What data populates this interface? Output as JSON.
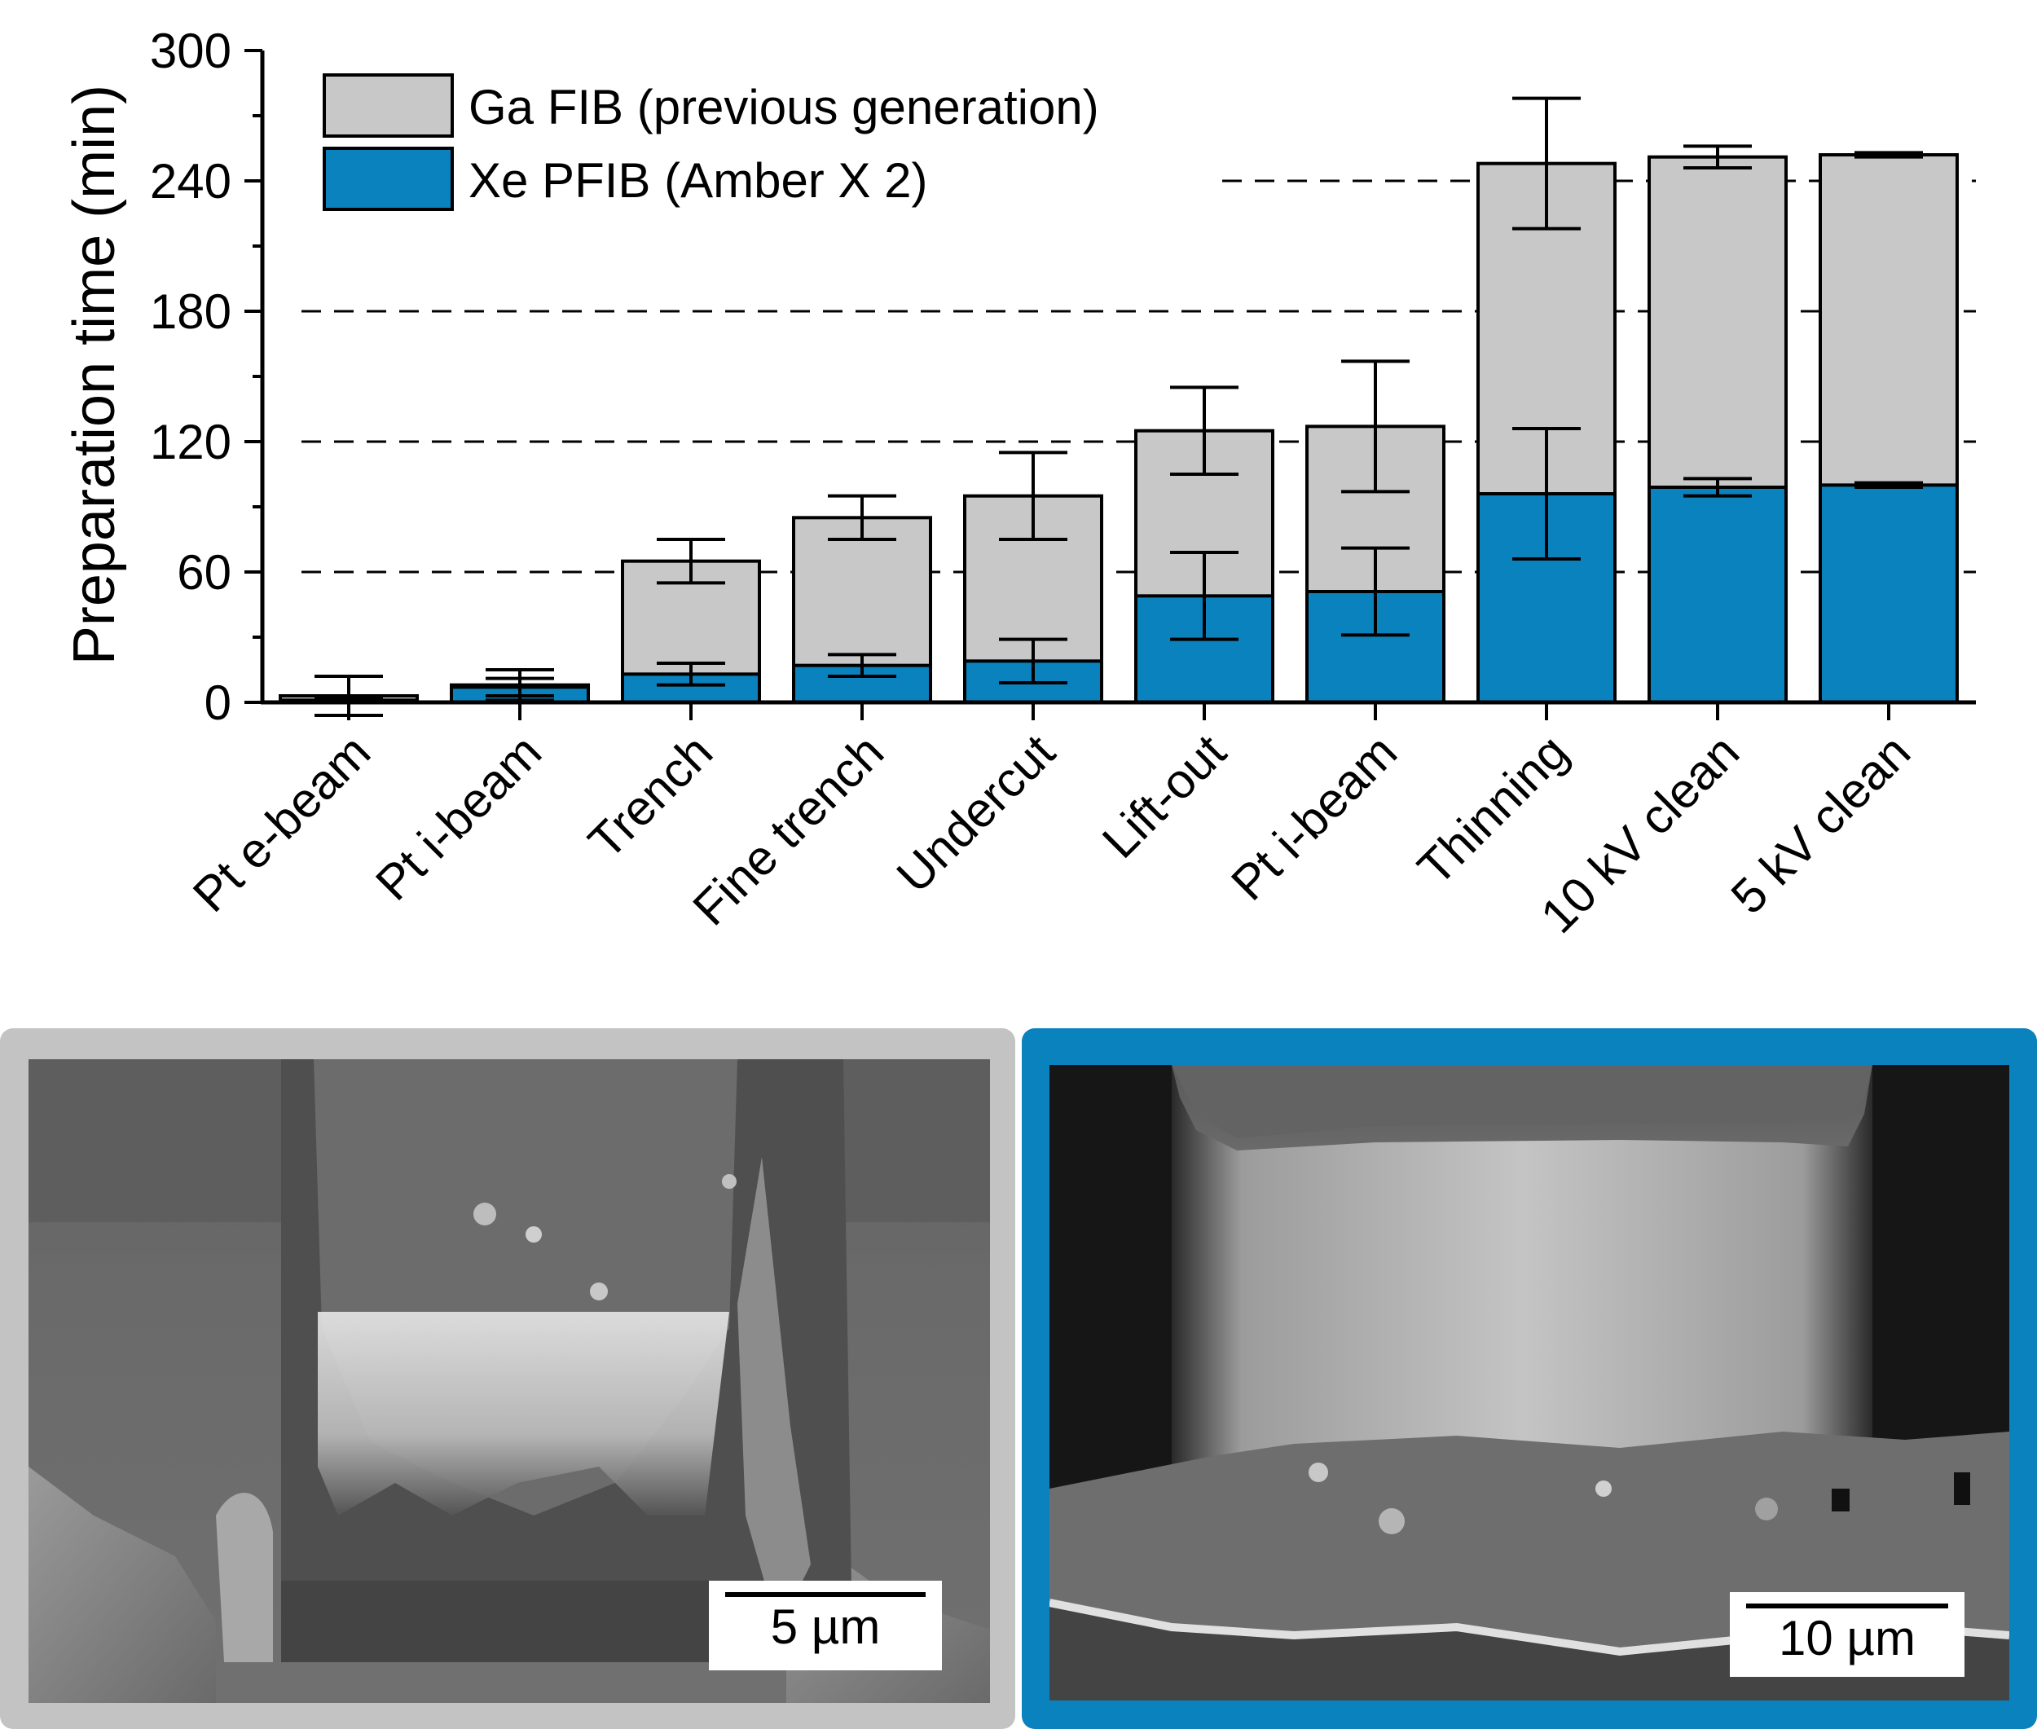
{
  "chart_data": {
    "type": "bar",
    "stacked": false,
    "ylabel": "Preparation time (min)",
    "xlabel": "",
    "ylim": [
      0,
      300
    ],
    "yticks": [
      0,
      60,
      120,
      180,
      240,
      300
    ],
    "ytick_labels": [
      "0",
      "60",
      "120",
      "180",
      "240",
      "300"
    ],
    "dashed_gridlines": [
      60,
      120,
      180,
      240
    ],
    "categories": [
      "Pt e-beam",
      "Pt i-beam",
      "Trench",
      "Fine trench",
      "Undercut",
      "Lift-out",
      "Pt i-beam",
      "Thinning",
      "10 kV clean",
      "5 kV clean"
    ],
    "series": [
      {
        "name": "Ga FIB (previous generation)",
        "color": "#c8c8c8",
        "values": [
          3,
          8,
          65,
          85,
          95,
          125,
          127,
          248,
          251,
          252
        ],
        "errors": [
          9,
          7,
          10,
          10,
          20,
          20,
          30,
          30,
          5,
          1
        ]
      },
      {
        "name": "Xe PFIB (Amber X 2)",
        "color": "#0a82be",
        "values": [
          1,
          7,
          13,
          17,
          19,
          49,
          51,
          96,
          99,
          100
        ],
        "errors": [
          1,
          4,
          5,
          5,
          10,
          20,
          20,
          30,
          4,
          1
        ]
      }
    ],
    "legend_position": "top-left"
  },
  "images": {
    "left": {
      "border_color": "#c3c3c3",
      "scale_label": "5 µm"
    },
    "right": {
      "border_color": "#0a82be",
      "scale_label": "10 µm"
    }
  }
}
